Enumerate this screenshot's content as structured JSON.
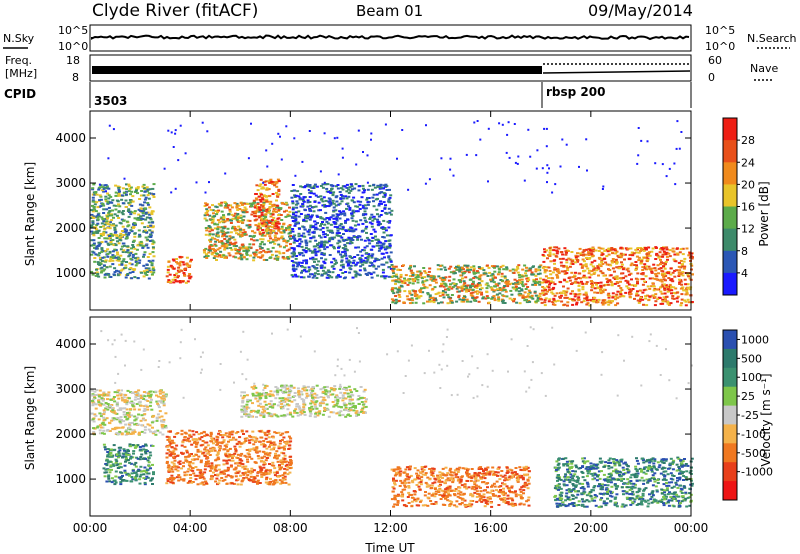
{
  "header": {
    "station": "Clyde River (fitACF)",
    "beam": "Beam 01",
    "date": "09/May/2014"
  },
  "strip_sky": {
    "left_label": "N.Sky",
    "right_label": "N.Search",
    "tick_top_left": "10^5",
    "tick_bottom_left": "10^0",
    "tick_top_right": "10^5",
    "tick_bottom_right": "10^0"
  },
  "strip_freq": {
    "left_label_1": "Freq.",
    "left_label_2": "[MHz]",
    "right_label": "Nave",
    "left_ticks": [
      "18",
      "8"
    ],
    "right_ticks": [
      "60",
      "0"
    ]
  },
  "strip_cpid": {
    "label": "CPID",
    "values": [
      {
        "start_hour": 0,
        "text": "3503"
      },
      {
        "start_hour": 18,
        "text": "rbsp  200"
      }
    ]
  },
  "panels": {
    "ylabel": "Slant Range [km]",
    "xlabel": "Time UT",
    "power_cbar_label": "Power [dB]",
    "velocity_cbar_label": "Velocity [m s⁻¹]"
  },
  "chart_data": [
    {
      "type": "heatmap",
      "name": "power",
      "x_range_hours": [
        0,
        24
      ],
      "x_tick_labels": [
        "00:00",
        "04:00",
        "08:00",
        "12:00",
        "16:00",
        "20:00",
        "00:00"
      ],
      "ylim": [
        180,
        4600
      ],
      "y_ticks": [
        1000,
        2000,
        3000,
        4000
      ],
      "ylabel": "Slant Range [km]",
      "colorbar": {
        "label": "Power [dB]",
        "tick_labels": [
          "4",
          "8",
          "12",
          "16",
          "20",
          "24",
          "28"
        ],
        "range": [
          0,
          32
        ],
        "colors": [
          "#1a1aff",
          "#2b57b5",
          "#3d8a6a",
          "#5cab4a",
          "#e8c42a",
          "#f08a1c",
          "#e8501a",
          "#ee1e14"
        ]
      },
      "regions": [
        {
          "t0": 0.0,
          "t1": 2.5,
          "r0": 900,
          "r1": 3000,
          "level": "low-mid"
        },
        {
          "t0": 3.0,
          "t1": 4.0,
          "r0": 800,
          "r1": 1400,
          "level": "high"
        },
        {
          "t0": 4.5,
          "t1": 8.0,
          "r0": 1300,
          "r1": 2600,
          "level": "mid-high"
        },
        {
          "t0": 6.5,
          "t1": 7.5,
          "r0": 1900,
          "r1": 3100,
          "level": "high"
        },
        {
          "t0": 8.0,
          "t1": 12.0,
          "r0": 900,
          "r1": 3000,
          "level": "low"
        },
        {
          "t0": 12.0,
          "t1": 18.0,
          "r0": 350,
          "r1": 1200,
          "level": "mid-high"
        },
        {
          "t0": 18.0,
          "t1": 24.0,
          "r0": 300,
          "r1": 1600,
          "level": "high"
        }
      ]
    },
    {
      "type": "heatmap",
      "name": "velocity",
      "x_range_hours": [
        0,
        24
      ],
      "x_tick_labels": [
        "00:00",
        "04:00",
        "08:00",
        "12:00",
        "16:00",
        "20:00",
        "00:00"
      ],
      "ylim": [
        180,
        4600
      ],
      "y_ticks": [
        1000,
        2000,
        3000,
        4000
      ],
      "ylabel": "Slant Range [km]",
      "xlabel": "Time UT",
      "colorbar": {
        "label": "Velocity [m s⁻¹]",
        "tick_labels": [
          "1000",
          "500",
          "100",
          "25",
          "-25",
          "-100",
          "-500",
          "-1000"
        ],
        "colors": [
          "#2a4fb0",
          "#2d7a6c",
          "#3b9170",
          "#7ec64a",
          "#c8c8c8",
          "#f4b24a",
          "#f07820",
          "#e83f1a",
          "#ee1414"
        ]
      },
      "regions": [
        {
          "t0": 0.0,
          "t1": 3.0,
          "r0": 2000,
          "r1": 3000,
          "level": "near-zero"
        },
        {
          "t0": 0.5,
          "t1": 2.5,
          "r0": 900,
          "r1": 1800,
          "level": "positive"
        },
        {
          "t0": 3.0,
          "t1": 8.0,
          "r0": 900,
          "r1": 2100,
          "level": "negative"
        },
        {
          "t0": 6.0,
          "t1": 11.0,
          "r0": 2400,
          "r1": 3100,
          "level": "near-zero"
        },
        {
          "t0": 12.0,
          "t1": 17.5,
          "r0": 400,
          "r1": 1300,
          "level": "negative"
        },
        {
          "t0": 18.5,
          "t1": 24.0,
          "r0": 400,
          "r1": 1500,
          "level": "positive"
        }
      ]
    }
  ]
}
